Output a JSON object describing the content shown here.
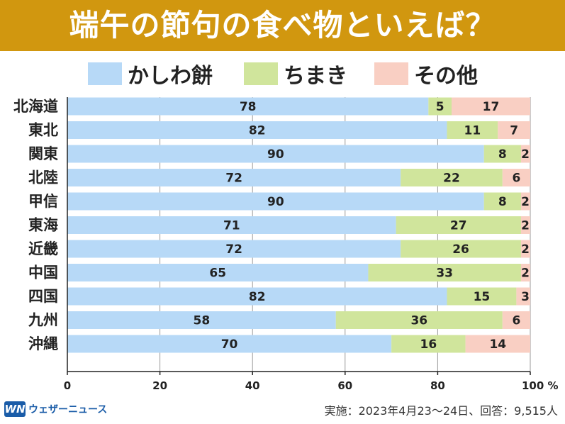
{
  "title": "端午の節句の食べ物といえば？",
  "colors": {
    "title_bg": "#d1970f",
    "title_text": "#ffffff",
    "series": [
      "#b7d9f7",
      "#d0e59c",
      "#f9cfc3"
    ]
  },
  "chart_data": {
    "type": "bar",
    "orientation": "horizontal",
    "stacked": true,
    "categories": [
      "北海道",
      "東北",
      "関東",
      "北陸",
      "甲信",
      "東海",
      "近畿",
      "中国",
      "四国",
      "九州",
      "沖縄"
    ],
    "series": [
      {
        "name": "かしわ餅",
        "values": [
          78,
          82,
          90,
          72,
          90,
          71,
          72,
          65,
          82,
          58,
          70
        ]
      },
      {
        "name": "ちまき",
        "values": [
          5,
          11,
          8,
          22,
          8,
          27,
          26,
          33,
          15,
          36,
          16
        ]
      },
      {
        "name": "その他",
        "values": [
          17,
          7,
          2,
          6,
          2,
          2,
          2,
          2,
          3,
          6,
          14
        ]
      }
    ],
    "xlim": [
      0,
      100
    ],
    "x_ticks": [
      "0",
      "20",
      "40",
      "60",
      "80",
      "100 %"
    ],
    "legend_position": "top",
    "grid": true
  },
  "logo": {
    "mark": "WN",
    "text": "ウェザーニュース"
  },
  "source_note": "実施：2023年4月23～24日、回答：9,515人"
}
